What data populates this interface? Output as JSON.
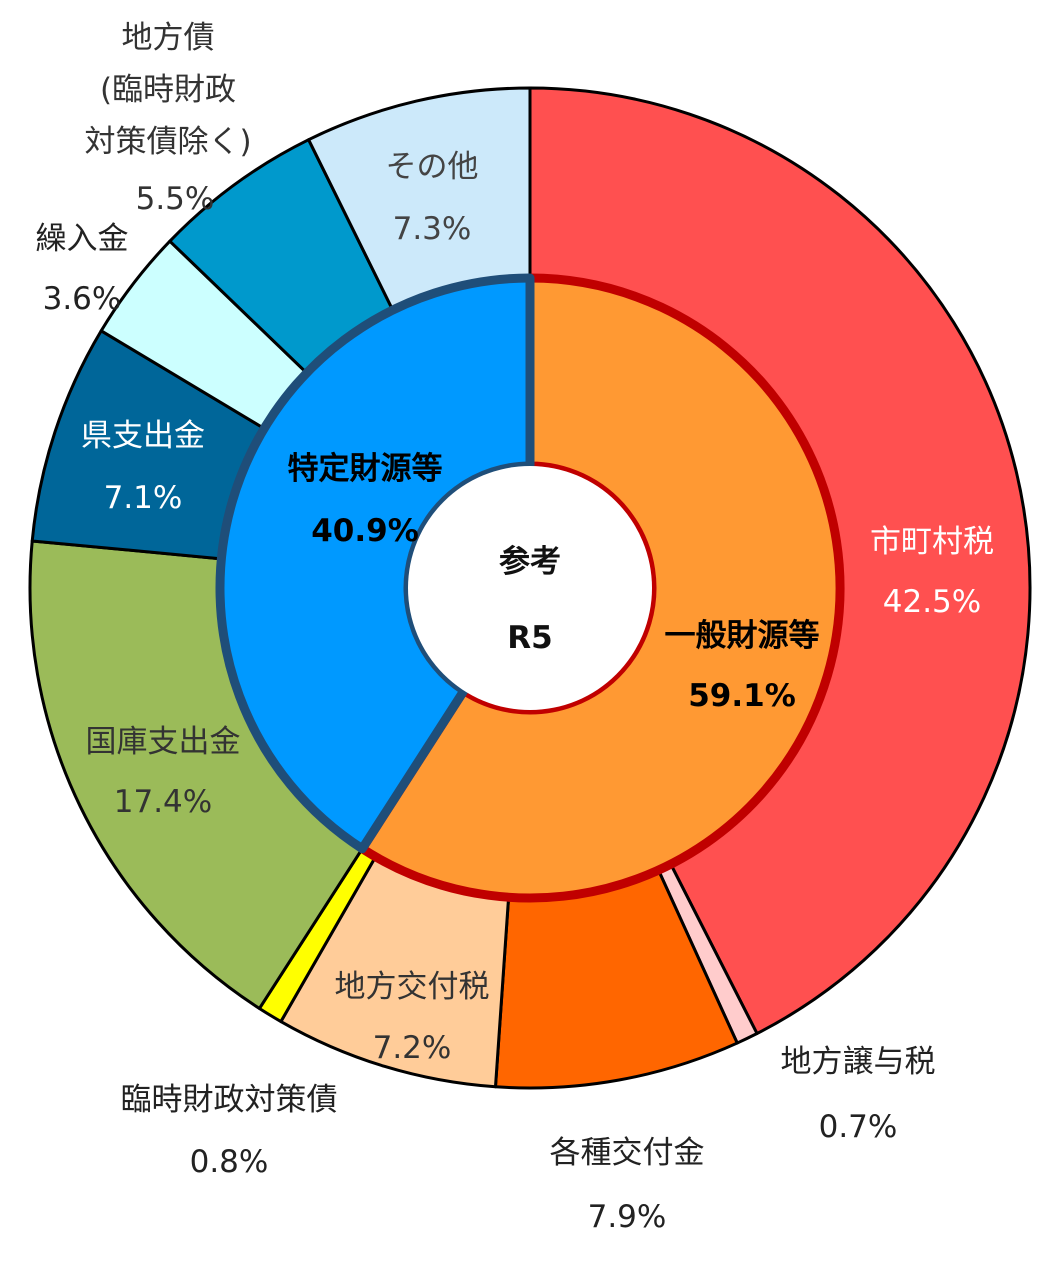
{
  "chart_data": {
    "type": "pie",
    "variant": "donut-two-ring",
    "center_label": [
      "参考",
      "R5"
    ],
    "inner_ring": [
      {
        "name": "一般財源等",
        "value": 59.1,
        "label": "59.1%",
        "color": "#ff9933",
        "border": "#c00000"
      },
      {
        "name": "特定財源等",
        "value": 40.9,
        "label": "40.9%",
        "color": "#0099ff",
        "border": "#1f4e79"
      }
    ],
    "outer_ring": [
      {
        "name": "市町村税",
        "value": 42.5,
        "label": "42.5%",
        "color": "#ff5050",
        "text_color": "#ffffff"
      },
      {
        "name": "地方譲与税",
        "value": 0.7,
        "label": "0.7%",
        "color": "#ffcccc",
        "text_color": "#222222"
      },
      {
        "name": "各種交付金",
        "value": 7.9,
        "label": "7.9%",
        "color": "#ff6600",
        "text_color": "#222222"
      },
      {
        "name": "地方交付税",
        "value": 7.2,
        "label": "7.2%",
        "color": "#ffcc99",
        "text_color": "#333333"
      },
      {
        "name": "臨時財政対策債",
        "value": 0.8,
        "label": "0.8%",
        "color": "#ffff00",
        "text_color": "#222222"
      },
      {
        "name": "国庫支出金",
        "value": 17.4,
        "label": "17.4%",
        "color": "#9bbb59",
        "text_color": "#333333"
      },
      {
        "name": "県支出金",
        "value": 7.1,
        "label": "7.1%",
        "color": "#006699",
        "text_color": "#ffffff"
      },
      {
        "name": "繰入金",
        "value": 3.6,
        "label": "3.6%",
        "color": "#ccffff",
        "text_color": "#222222"
      },
      {
        "name": "地方債\n(臨時財政\n対策債除く)",
        "value": 5.5,
        "label": "5.5%",
        "color": "#0099cc",
        "text_color": "#333333"
      },
      {
        "name": "その他",
        "value": 7.3,
        "label": "7.3%",
        "color": "#cce9fa",
        "text_color": "#444444"
      }
    ]
  }
}
